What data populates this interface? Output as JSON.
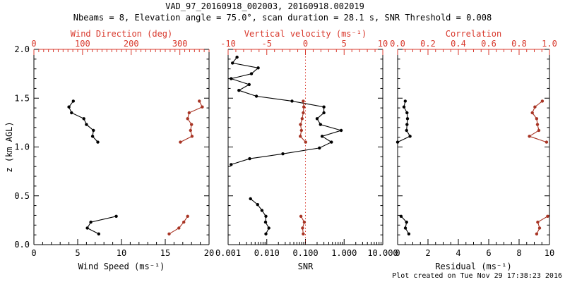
{
  "header": {
    "title": "VAD_97_20160918_002003, 20160918.002019",
    "subtitle": "Nbeams = 8, Elevation angle = 75.0°, scan duration = 28.1 s, SNR Threshold = 0.008"
  },
  "footer": {
    "created": "Plot created on Tue Nov 29 17:38:23 2016"
  },
  "colors": {
    "background": "#ffffff",
    "black": "#000000",
    "axis_red": "#d8382c",
    "data_red": "#a83424"
  },
  "chart_data": {
    "type": "line",
    "title": "VAD_97_20160918_002003, 20160918.002019",
    "orientation": "profile-vs-height",
    "grid": false,
    "legend": "none",
    "y_axis": {
      "label": "z (km AGL)",
      "range": [
        0,
        2
      ],
      "major_ticks": [
        0,
        0.5,
        1,
        1.5,
        2
      ],
      "tick_labels": [
        "0.0",
        "0.5",
        "1.0",
        "1.5",
        "2.0"
      ],
      "minor_step": 0.1
    },
    "panels": [
      {
        "id": "wind",
        "bottom_axis": {
          "title": "Wind Speed (ms⁻¹)",
          "scale": "linear",
          "range": [
            0,
            20
          ],
          "major_ticks": [
            0,
            5,
            10,
            15,
            20
          ],
          "tick_labels": [
            "0",
            "5",
            "10",
            "15",
            "20"
          ],
          "minor_step": 1,
          "color": "black"
        },
        "top_axis": {
          "title": "Wind Direction (deg)",
          "scale": "linear",
          "range": [
            0,
            360
          ],
          "major_ticks": [
            0,
            100,
            200,
            300
          ],
          "tick_labels": [
            "0",
            "100",
            "200",
            "300"
          ],
          "minor_step": 10,
          "color": "red"
        },
        "series": [
          {
            "name": "wind-speed",
            "axis": "bottom",
            "color": "black",
            "segments": [
              {
                "z": [
                  1.47,
                  1.41,
                  1.35,
                  1.29,
                  1.23,
                  1.17,
                  1.11,
                  1.05
                ],
                "values": [
                  4.5,
                  4.0,
                  4.3,
                  5.7,
                  6.0,
                  6.8,
                  6.7,
                  7.3
                ]
              },
              {
                "z": [
                  0.29,
                  0.23,
                  0.17,
                  0.11
                ],
                "values": [
                  9.4,
                  6.5,
                  6.1,
                  7.4
                ]
              }
            ]
          },
          {
            "name": "wind-direction",
            "axis": "top",
            "color": "red",
            "segments": [
              {
                "z": [
                  1.47,
                  1.41,
                  1.35,
                  1.29,
                  1.23,
                  1.17,
                  1.11,
                  1.05
                ],
                "values": [
                  340,
                  346,
                  319,
                  316,
                  324,
                  322,
                  325,
                  301
                ]
              },
              {
                "z": [
                  0.29,
                  0.23,
                  0.17,
                  0.11
                ],
                "values": [
                  316,
                  308,
                  298,
                  278
                ]
              }
            ]
          }
        ]
      },
      {
        "id": "snr",
        "bottom_axis": {
          "title": "SNR",
          "scale": "log",
          "range": [
            0.001,
            10
          ],
          "major_ticks": [
            0.001,
            0.01,
            0.1,
            1,
            10
          ],
          "tick_labels": [
            "0.001",
            "0.010",
            "0.100",
            "1.000",
            "10.000"
          ],
          "color": "black"
        },
        "top_axis": {
          "title": "Vertical velocity (ms⁻¹)",
          "scale": "linear",
          "range": [
            -10,
            10
          ],
          "major_ticks": [
            -10,
            -5,
            0,
            5,
            10
          ],
          "tick_labels": [
            "-10",
            "-5",
            "0",
            "5",
            "10"
          ],
          "minor_step": 1,
          "color": "red"
        },
        "reference_line": {
          "axis": "top",
          "value": 0,
          "style": "dotted",
          "color": "red"
        },
        "series": [
          {
            "name": "snr",
            "axis": "bottom",
            "color": "black",
            "segments": [
              {
                "z": [
                  1.92,
                  1.86,
                  1.81,
                  1.75,
                  1.7,
                  1.64,
                  1.58,
                  1.52,
                  1.47,
                  1.41,
                  1.35,
                  1.29,
                  1.23,
                  1.17,
                  1.11,
                  1.05,
                  0.99,
                  0.93,
                  0.88,
                  0.82
                ],
                "values": [
                  0.0017,
                  0.0013,
                  0.006,
                  0.004,
                  0.0012,
                  0.0035,
                  0.0019,
                  0.0054,
                  0.045,
                  0.3,
                  0.3,
                  0.2,
                  0.245,
                  0.84,
                  0.27,
                  0.47,
                  0.23,
                  0.026,
                  0.0036,
                  0.0012
                ]
              },
              {
                "z": [
                  0.47,
                  0.41,
                  0.35,
                  0.29,
                  0.23,
                  0.17,
                  0.11
                ],
                "values": [
                  0.0038,
                  0.0058,
                  0.0075,
                  0.0095,
                  0.0093,
                  0.0113,
                  0.0095
                ]
              }
            ]
          },
          {
            "name": "vertical-velocity",
            "axis": "top",
            "color": "red",
            "segments": [
              {
                "z": [
                  1.47,
                  1.41,
                  1.35,
                  1.29,
                  1.23,
                  1.17,
                  1.11,
                  1.05
                ],
                "values": [
                  -0.28,
                  -0.21,
                  -0.28,
                  -0.43,
                  -0.64,
                  -0.52,
                  -0.67,
                  0.03
                ]
              },
              {
                "z": [
                  0.29,
                  0.23,
                  0.17,
                  0.11
                ],
                "values": [
                  -0.58,
                  -0.15,
                  -0.37,
                  -0.28
                ]
              }
            ]
          }
        ]
      },
      {
        "id": "residual",
        "bottom_axis": {
          "title": "Residual (ms⁻¹)",
          "scale": "linear",
          "range": [
            0,
            10
          ],
          "major_ticks": [
            0,
            2,
            4,
            6,
            8,
            10
          ],
          "tick_labels": [
            "0",
            "2",
            "4",
            "6",
            "8",
            "10"
          ],
          "minor_step": 0.5,
          "color": "black"
        },
        "top_axis": {
          "title": "Correlation",
          "scale": "linear",
          "range": [
            0,
            1
          ],
          "major_ticks": [
            0,
            0.2,
            0.4,
            0.6,
            0.8,
            1.0
          ],
          "tick_labels": [
            "0.0",
            "0.2",
            "0.4",
            "0.6",
            "0.8",
            "1.0"
          ],
          "minor_step": 0.05,
          "color": "red"
        },
        "series": [
          {
            "name": "residual",
            "axis": "bottom",
            "color": "black",
            "segments": [
              {
                "z": [
                  1.47,
                  1.41,
                  1.35,
                  1.29,
                  1.23,
                  1.17,
                  1.11,
                  1.05
                ],
                "values": [
                  0.5,
                  0.42,
                  0.62,
                  0.65,
                  0.62,
                  0.59,
                  0.82,
                  0.0
                ]
              },
              {
                "z": [
                  0.29,
                  0.23,
                  0.17,
                  0.11
                ],
                "values": [
                  0.23,
                  0.59,
                  0.51,
                  0.74
                ]
              }
            ]
          },
          {
            "name": "correlation",
            "axis": "top",
            "color": "red",
            "segments": [
              {
                "z": [
                  1.47,
                  1.41,
                  1.35,
                  1.29,
                  1.23,
                  1.17,
                  1.11,
                  1.05
                ],
                "values": [
                  0.953,
                  0.904,
                  0.887,
                  0.916,
                  0.921,
                  0.93,
                  0.868,
                  0.981
                ]
              },
              {
                "z": [
                  0.29,
                  0.23,
                  0.17,
                  0.11
                ],
                "values": [
                  0.988,
                  0.923,
                  0.935,
                  0.916
                ]
              }
            ]
          }
        ]
      }
    ]
  }
}
